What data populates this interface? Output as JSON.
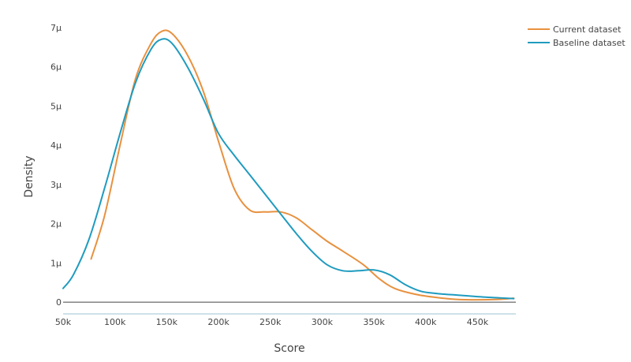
{
  "chart_data": {
    "type": "line",
    "xlabel": "Score",
    "ylabel": "Density",
    "xlim": [
      50000,
      487000
    ],
    "ylim": [
      -0.3,
      7.3
    ],
    "x_ticks": [
      {
        "value": 50000,
        "label": "50k"
      },
      {
        "value": 100000,
        "label": "100k"
      },
      {
        "value": 150000,
        "label": "150k"
      },
      {
        "value": 200000,
        "label": "200k"
      },
      {
        "value": 250000,
        "label": "250k"
      },
      {
        "value": 300000,
        "label": "300k"
      },
      {
        "value": 350000,
        "label": "350k"
      },
      {
        "value": 400000,
        "label": "400k"
      },
      {
        "value": 450000,
        "label": "450k"
      }
    ],
    "y_ticks": [
      {
        "value": 0,
        "label": "0"
      },
      {
        "value": 1,
        "label": "1μ"
      },
      {
        "value": 2,
        "label": "2μ"
      },
      {
        "value": 3,
        "label": "3μ"
      },
      {
        "value": 4,
        "label": "4μ"
      },
      {
        "value": 5,
        "label": "5μ"
      },
      {
        "value": 6,
        "label": "6μ"
      },
      {
        "value": 7,
        "label": "7μ"
      }
    ],
    "grid": false,
    "legend_position": "top-right",
    "series": [
      {
        "name": "Current dataset",
        "color": "#e8913f",
        "x": [
          77000,
          90000,
          105000,
          120000,
          135000,
          145000,
          155000,
          170000,
          185000,
          200000,
          215000,
          230000,
          245000,
          260000,
          275000,
          290000,
          305000,
          320000,
          340000,
          355000,
          370000,
          390000,
          410000,
          430000,
          450000,
          470000,
          485000
        ],
        "y": [
          1.1,
          2.2,
          4.0,
          5.7,
          6.6,
          6.9,
          6.85,
          6.3,
          5.4,
          4.1,
          2.9,
          2.35,
          2.3,
          2.3,
          2.15,
          1.85,
          1.55,
          1.3,
          0.95,
          0.6,
          0.35,
          0.2,
          0.12,
          0.07,
          0.06,
          0.07,
          0.1
        ]
      },
      {
        "name": "Baseline dataset",
        "color": "#1f9bbf",
        "x": [
          50000,
          60000,
          75000,
          90000,
          105000,
          120000,
          135000,
          145000,
          155000,
          170000,
          185000,
          200000,
          215000,
          230000,
          245000,
          260000,
          275000,
          290000,
          305000,
          320000,
          335000,
          350000,
          365000,
          380000,
          395000,
          410000,
          430000,
          450000,
          470000,
          485000
        ],
        "y": [
          0.35,
          0.7,
          1.6,
          2.9,
          4.3,
          5.6,
          6.45,
          6.7,
          6.6,
          6.0,
          5.2,
          4.3,
          3.75,
          3.25,
          2.75,
          2.25,
          1.75,
          1.3,
          0.95,
          0.8,
          0.8,
          0.82,
          0.7,
          0.45,
          0.28,
          0.22,
          0.18,
          0.14,
          0.11,
          0.09
        ]
      }
    ]
  }
}
